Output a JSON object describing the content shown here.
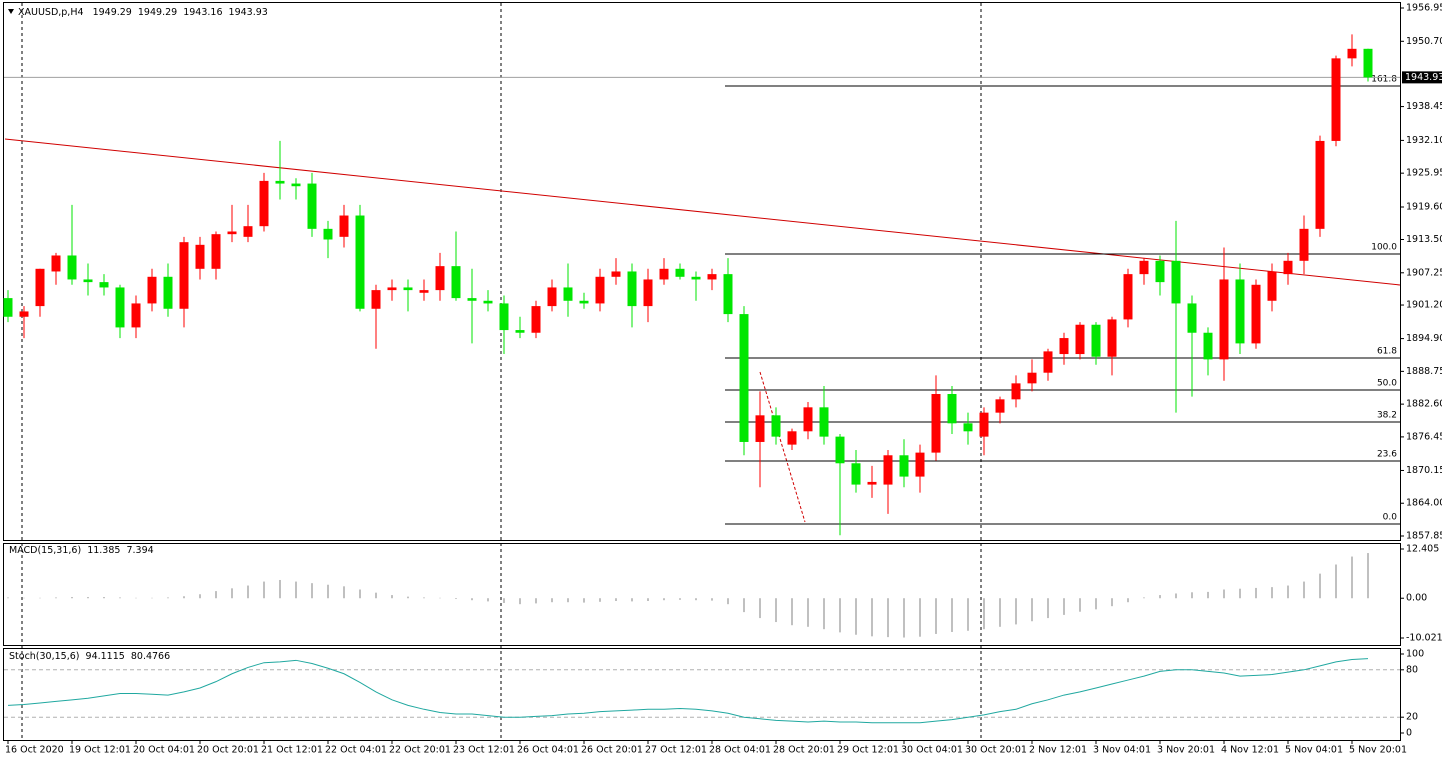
{
  "chart_data": [
    {
      "type": "candlestick",
      "title": "XAUUSD,p,H4",
      "quote": [
        1949.29,
        1949.29,
        1943.16,
        1943.93
      ],
      "bid": 1943.93,
      "up_color": "#ff0000",
      "down_color": "#00e600",
      "categories": [
        "16 Oct 2020",
        null,
        null,
        null,
        "19 Oct 12:01",
        null,
        null,
        null,
        "20 Oct 04:01",
        null,
        null,
        null,
        "20 Oct 20:01",
        null,
        null,
        null,
        "21 Oct 12:01",
        null,
        null,
        null,
        "22 Oct 04:01",
        null,
        null,
        null,
        "22 Oct 20:01",
        null,
        null,
        null,
        "23 Oct 12:01",
        null,
        null,
        null,
        "26 Oct 04:01",
        null,
        null,
        null,
        "26 Oct 20:01",
        null,
        null,
        null,
        "27 Oct 12:01",
        null,
        null,
        null,
        "28 Oct 04:01",
        null,
        null,
        null,
        "28 Oct 20:01",
        null,
        null,
        null,
        "29 Oct 12:01",
        null,
        null,
        null,
        "30 Oct 04:01",
        null,
        null,
        null,
        "30 Oct 20:01",
        null,
        null,
        null,
        "2 Nov 12:01",
        null,
        null,
        null,
        "3 Nov 04:01",
        null,
        null,
        null,
        "3 Nov 20:01",
        null,
        null,
        null,
        "4 Nov 12:01",
        null,
        null,
        null,
        "5 Nov 04:01",
        null,
        null,
        null,
        "5 Nov 20:01",
        null
      ],
      "open": [
        1902.5,
        1899,
        1901,
        1907.5,
        1910.5,
        1906,
        1905.5,
        1904.5,
        1897,
        1901.5,
        1906.5,
        1900.5,
        1908,
        1908,
        1914.5,
        1914,
        1916,
        1924.5,
        1924,
        1924,
        1915.5,
        1914,
        1918,
        1900.5,
        1904,
        1904.5,
        1903.5,
        1904,
        1908.5,
        1902.5,
        1902,
        1901.5,
        1896.5,
        1896,
        1901,
        1904.5,
        1902,
        1901.5,
        1906.5,
        1907.5,
        1901,
        1906,
        1908,
        1906.5,
        1906,
        1907,
        1899.5,
        1875.5,
        1880.5,
        1875,
        1877.5,
        1882,
        1876.5,
        1871.5,
        1867.5,
        1867.5,
        1873,
        1869,
        1873.5,
        1884.5,
        1879,
        1876.5,
        1881,
        1883.5,
        1886.5,
        1888.5,
        1892,
        1892,
        1897.5,
        1891.5,
        1898.5,
        1907,
        1909.5,
        1909.5,
        1901.5,
        1896,
        1891,
        1906,
        1894,
        1902,
        1907,
        1909.5,
        1915.5,
        1932,
        1947.5,
        1949.29
      ],
      "high": [
        1904,
        1901,
        1908,
        1911,
        1920,
        1909,
        1907,
        1905,
        1903,
        1908,
        1909,
        1914,
        1914,
        1915,
        1920,
        1920,
        1926,
        1932,
        1925,
        1926,
        1917,
        1920,
        1920,
        1905,
        1906,
        1906,
        1906,
        1911,
        1915,
        1908,
        1904,
        1903,
        1899,
        1902,
        1906,
        1909,
        1903.5,
        1908,
        1910,
        1909,
        1908,
        1910,
        1909,
        1907.5,
        1908,
        1910,
        1901,
        1885,
        1882,
        1878,
        1883,
        1886,
        1877,
        1874,
        1871,
        1874,
        1876,
        1875,
        1888,
        1886,
        1881,
        1882,
        1884,
        1888,
        1891,
        1893,
        1896,
        1898,
        1898,
        1899,
        1908,
        1910,
        1910.5,
        1917,
        1903,
        1897,
        1912,
        1909,
        1906,
        1909,
        1911,
        1918,
        1933,
        1948,
        1952,
        1949.29
      ],
      "low": [
        1898,
        1895,
        1899,
        1905,
        1905,
        1903,
        1903,
        1895,
        1895,
        1900,
        1899,
        1897,
        1906,
        1906,
        1913,
        1913,
        1915,
        1921,
        1921,
        1914,
        1910,
        1912,
        1900,
        1893,
        1902,
        1900,
        1902,
        1902,
        1902,
        1894,
        1900,
        1892,
        1895,
        1895,
        1900,
        1899,
        1900.5,
        1900,
        1905,
        1897,
        1898,
        1905,
        1906,
        1902,
        1904,
        1898,
        1873,
        1867,
        1875,
        1874,
        1876,
        1875,
        1858,
        1866,
        1865,
        1862,
        1867,
        1866,
        1872,
        1877,
        1875,
        1873,
        1879,
        1882,
        1885,
        1887,
        1890,
        1891,
        1890,
        1888,
        1897,
        1905,
        1903,
        1881,
        1884,
        1888,
        1887,
        1892,
        1893,
        1900,
        1905,
        1907,
        1914,
        1931,
        1946,
        1943.16
      ],
      "close": [
        1899,
        1900,
        1908,
        1910.5,
        1906,
        1905.5,
        1904.5,
        1897,
        1901.5,
        1906.5,
        1900.5,
        1913,
        1912.5,
        1914.5,
        1915,
        1916,
        1924.5,
        1924,
        1923.5,
        1915.5,
        1913.5,
        1918,
        1900.5,
        1904,
        1904.5,
        1904,
        1904,
        1908.5,
        1902.5,
        1902,
        1901.5,
        1896.5,
        1896,
        1901,
        1904.5,
        1902,
        1901.5,
        1906.5,
        1907.5,
        1901,
        1906,
        1908,
        1906.5,
        1906,
        1907,
        1899.5,
        1875.5,
        1880.5,
        1876.5,
        1877.5,
        1882,
        1876.5,
        1871.5,
        1867.5,
        1868,
        1873,
        1869,
        1873.5,
        1884.5,
        1879,
        1877.5,
        1881,
        1883.5,
        1886.5,
        1888.5,
        1892.5,
        1895,
        1897.5,
        1891.5,
        1898.5,
        1907,
        1909.5,
        1905.5,
        1901.5,
        1896,
        1891,
        1906,
        1894,
        1905,
        1907.5,
        1909.5,
        1915.5,
        1932,
        1947.5,
        1949.29,
        1943.93
      ],
      "ylim": [
        1857.85,
        1956.95
      ],
      "yticks": [
        1956.95,
        {
          "value": 1950.7,
          "label": "1950.70"
        },
        1938.45,
        {
          "value": 1932.1,
          "label": "1932.10"
        },
        1925.95,
        {
          "value": 1919.6,
          "label": "1919.60"
        },
        {
          "value": 1913.5,
          "label": "1913.50"
        },
        1907.25,
        {
          "value": 1901.2,
          "label": "1901.20"
        },
        {
          "value": 1894.9,
          "label": "1894.90"
        },
        1888.75,
        {
          "value": 1882.6,
          "label": "1882.60"
        },
        1876.45,
        1870.15,
        {
          "value": 1864,
          "label": "1864.00"
        },
        1857.85
      ],
      "levels": [
        {
          "value": 1942.31,
          "label": "161.8"
        },
        {
          "value": 1910.78,
          "label": "100.0"
        },
        {
          "value": 1891.26,
          "label": "61.8"
        },
        {
          "value": 1885.25,
          "label": "50.0"
        },
        {
          "value": 1879.25,
          "label": "38.2"
        },
        {
          "value": 1871.93,
          "label": "23.6"
        },
        {
          "value": 1860.1,
          "label": "0.0"
        }
      ]
    },
    {
      "type": "bar",
      "title": "MACD(15,31,6)",
      "main_value": 11.385,
      "signal_value": 7.394,
      "color": "#c0c0c0",
      "values": [
        0.2,
        0.1,
        0.1,
        0.2,
        0.3,
        0.3,
        0.3,
        0.2,
        0.1,
        0.1,
        0.2,
        0.5,
        1.0,
        1.8,
        2.5,
        3.2,
        4.2,
        4.6,
        4.2,
        3.8,
        3.4,
        3.0,
        2.2,
        1.4,
        0.8,
        0.4,
        0.2,
        0.1,
        -0.2,
        -0.5,
        -0.8,
        -1.2,
        -1.5,
        -1.3,
        -1.0,
        -1.0,
        -1.1,
        -0.9,
        -0.7,
        -0.8,
        -0.7,
        -0.5,
        -0.4,
        -0.5,
        -0.6,
        -1.5,
        -3.5,
        -5.0,
        -6.0,
        -6.8,
        -7.2,
        -7.8,
        -8.6,
        -9.2,
        -9.6,
        -9.8,
        -9.9,
        -9.7,
        -9.0,
        -8.5,
        -8.2,
        -7.8,
        -7.2,
        -6.6,
        -5.8,
        -5.0,
        -4.2,
        -3.4,
        -2.8,
        -2.0,
        -1.0,
        0.2,
        0.8,
        1.2,
        1.5,
        1.6,
        2.2,
        2.4,
        2.6,
        2.8,
        3.2,
        4.2,
        6.2,
        8.5,
        10.5,
        11.385
      ],
      "ylim": [
        -10.021,
        12.405
      ],
      "yticks": [
        12.405,
        {
          "value": 0,
          "label": "0.00"
        },
        -10.021
      ]
    },
    {
      "type": "line",
      "title": "Stoch(30,15,6)",
      "main_value": 94.1115,
      "signal_value": 80.4766,
      "color": "#20a8a0",
      "values": [
        35,
        36,
        38,
        40,
        42,
        44,
        47,
        50,
        50,
        49,
        48,
        52,
        57,
        65,
        75,
        83,
        89,
        90,
        92,
        88,
        82,
        75,
        64,
        52,
        42,
        35,
        30,
        26,
        24,
        24,
        22,
        20,
        20,
        21,
        22,
        24,
        25,
        27,
        28,
        29,
        30,
        30,
        31,
        30,
        28,
        25,
        20,
        18,
        16,
        15,
        14,
        15,
        14,
        14,
        13,
        13,
        13,
        13,
        15,
        17,
        20,
        23,
        27,
        30,
        37,
        42,
        48,
        52,
        57,
        62,
        67,
        72,
        78,
        80,
        80,
        78,
        76,
        72,
        73,
        74,
        77,
        80,
        85,
        90,
        93,
        94.1115
      ],
      "ylim": [
        0,
        100
      ],
      "yticks": [
        100,
        80,
        20,
        0
      ]
    }
  ]
}
